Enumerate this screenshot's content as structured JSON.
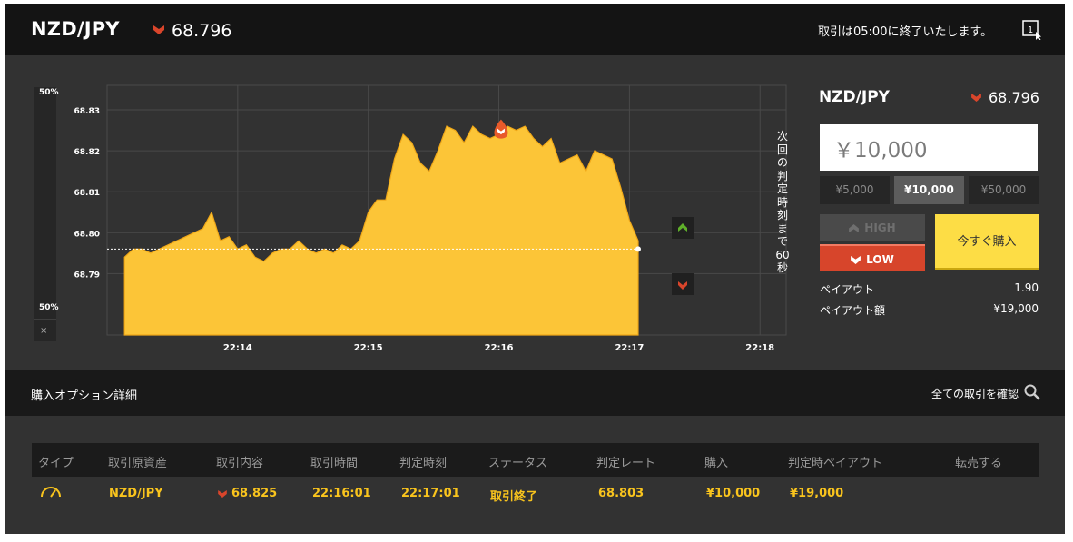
{
  "header": {
    "pair": "NZD/JPY",
    "rate": "68.796",
    "rate_direction": "down",
    "notice": "取引は05:00に終了いたします。",
    "window_icon": "window-1-icon"
  },
  "sentiment": {
    "top_pct": "50%",
    "bottom_pct": "50%",
    "close_label": "×",
    "up_color": "#5faf2a",
    "down_color": "#d2452c"
  },
  "chart_data": {
    "type": "area",
    "title": "",
    "x_ticks": [
      "22:14",
      "22:15",
      "22:16",
      "22:17",
      "22:18"
    ],
    "y_ticks": [
      "68.79",
      "68.80",
      "68.81",
      "68.82",
      "68.83"
    ],
    "ylim": [
      68.775,
      68.836
    ],
    "grid": true,
    "fill_color": "#fcc537",
    "current_rate_line": 68.796,
    "marker_entry": {
      "time": "22:16:01",
      "value": 68.825
    },
    "series": [
      {
        "x": [
          "22:13:08",
          "22:13:12",
          "22:13:16",
          "22:13:20",
          "22:13:24",
          "22:13:28",
          "22:13:32",
          "22:13:36",
          "22:13:40",
          "22:13:44",
          "22:13:48",
          "22:13:52",
          "22:13:56",
          "22:14:00",
          "22:14:04",
          "22:14:08",
          "22:14:12",
          "22:14:16",
          "22:14:20",
          "22:14:24",
          "22:14:28",
          "22:14:32",
          "22:14:36",
          "22:14:40",
          "22:14:44",
          "22:14:48",
          "22:14:52",
          "22:14:56",
          "22:15:00",
          "22:15:04",
          "22:15:08",
          "22:15:12",
          "22:15:16",
          "22:15:20",
          "22:15:24",
          "22:15:28",
          "22:15:32",
          "22:15:36",
          "22:15:40",
          "22:15:44",
          "22:15:48",
          "22:15:52",
          "22:15:56",
          "22:16:00",
          "22:16:04",
          "22:16:08",
          "22:16:12",
          "22:16:16",
          "22:16:20",
          "22:16:24",
          "22:16:28",
          "22:16:32",
          "22:16:36",
          "22:16:40",
          "22:16:44",
          "22:16:48",
          "22:16:52",
          "22:16:56",
          "22:17:00",
          "22:17:04"
        ],
        "values": [
          68.794,
          68.796,
          68.796,
          68.795,
          68.796,
          68.797,
          68.798,
          68.799,
          68.8,
          68.801,
          68.805,
          68.798,
          68.799,
          68.796,
          68.797,
          68.794,
          68.793,
          68.795,
          68.796,
          68.796,
          68.798,
          68.796,
          68.795,
          68.796,
          68.795,
          68.797,
          68.796,
          68.798,
          68.805,
          68.808,
          68.808,
          68.818,
          68.824,
          68.822,
          68.817,
          68.815,
          68.82,
          68.826,
          68.825,
          68.822,
          68.826,
          68.824,
          68.823,
          68.824,
          68.826,
          68.825,
          68.826,
          68.823,
          68.821,
          68.823,
          68.817,
          68.818,
          68.819,
          68.815,
          68.82,
          68.819,
          68.818,
          68.811,
          68.803,
          68.798
        ]
      }
    ]
  },
  "countdown": "次回の判定時刻まで60秒",
  "trade": {
    "pair": "NZD/JPY",
    "rate": "68.796",
    "amount": "￥10,000",
    "presets": [
      "¥5,000",
      "¥10,000",
      "¥50,000"
    ],
    "active_preset": "¥10,000",
    "high_label": "HIGH",
    "low_label": "LOW",
    "buy_label": "今すぐ購入",
    "payout_label": "ペイアウト",
    "payout_value": "1.90",
    "payout_amount_label": "ペイアウト額",
    "payout_amount_value": "¥19,000"
  },
  "section": {
    "title": "購入オプション詳細",
    "link": "全ての取引を確認"
  },
  "table": {
    "headers": [
      "タイプ",
      "取引原資産",
      "取引内容",
      "取引時間",
      "判定時刻",
      "ステータス",
      "判定レート",
      "購入",
      "判定時ペイアウト",
      "転売する"
    ],
    "row": {
      "type_icon": "gauge-icon",
      "asset": "NZD/JPY",
      "direction": "low",
      "rate": "68.825",
      "trade_time": "22:16:01",
      "judge_time": "22:17:01",
      "status": "取引終了",
      "judge_rate": "68.803",
      "purchase": "¥10,000",
      "payout": "¥19,000"
    }
  }
}
